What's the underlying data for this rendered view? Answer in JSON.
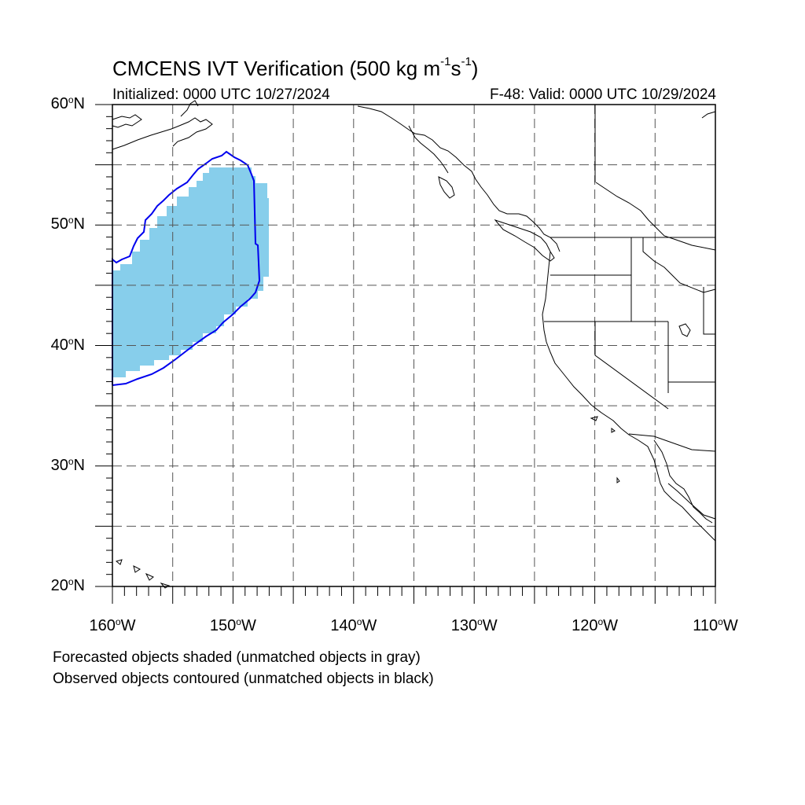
{
  "title": {
    "prefix": "CMCENS IVT Verification (500 kg m",
    "exp1": "-1",
    "mid": "s",
    "exp2": "-1",
    "suffix": ")"
  },
  "initialized": "Initialized: 0000 UTC 10/27/2024",
  "valid": "F-48: Valid: 0000 UTC 10/29/2024",
  "lat_labels": [
    {
      "value": "60",
      "hemi": "N"
    },
    {
      "value": "50",
      "hemi": "N"
    },
    {
      "value": "40",
      "hemi": "N"
    },
    {
      "value": "30",
      "hemi": "N"
    },
    {
      "value": "20",
      "hemi": "N"
    }
  ],
  "lon_labels": [
    {
      "value": "160",
      "hemi": "W"
    },
    {
      "value": "150",
      "hemi": "W"
    },
    {
      "value": "140",
      "hemi": "W"
    },
    {
      "value": "130",
      "hemi": "W"
    },
    {
      "value": "120",
      "hemi": "W"
    },
    {
      "value": "110",
      "hemi": "W"
    }
  ],
  "notes": {
    "forecast": "Forecasted objects shaded (unmatched objects in gray)",
    "observed": "Observed objects contoured (unmatched objects in black)"
  },
  "colors": {
    "forecast_fill": "#87ceeb",
    "observed_contour": "#0000ee",
    "coast": "#000000",
    "grid": "#555555"
  }
}
